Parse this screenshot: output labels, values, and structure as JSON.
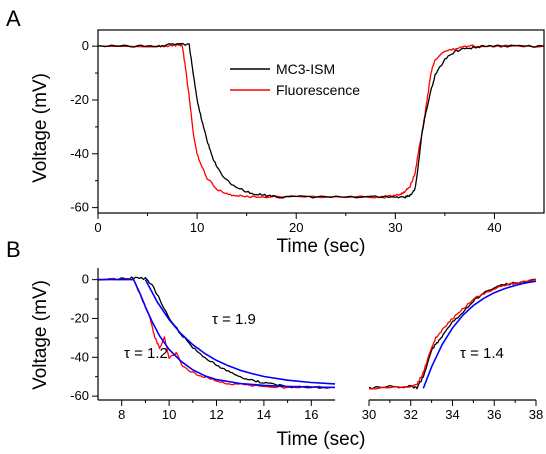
{
  "chart_data": [
    {
      "panel": "A",
      "type": "line",
      "xlabel": "Time (sec)",
      "ylabel": "Voltage (mV)",
      "xlim": [
        0,
        45
      ],
      "ylim": [
        -62,
        6
      ],
      "xticks": [
        0,
        10,
        20,
        30,
        40
      ],
      "yticks": [
        0,
        -20,
        -40,
        -60
      ],
      "legend": {
        "placement": "top-center",
        "entries": [
          "MC3-ISM",
          "Fluorescence"
        ]
      },
      "series": [
        {
          "name": "MC3-ISM",
          "color": "#000000",
          "x": [
            0,
            2,
            4,
            6,
            7,
            8,
            9.2,
            9.6,
            10,
            10.5,
            11,
            11.5,
            12,
            13,
            14,
            15,
            16,
            17,
            18,
            20,
            22,
            25,
            28,
            30,
            31,
            31.5,
            32,
            32.3,
            32.7,
            33,
            33.5,
            34,
            35,
            36,
            37,
            38,
            39,
            40,
            42,
            45
          ],
          "y": [
            0,
            0,
            0,
            0,
            0.5,
            1,
            0.5,
            -10,
            -20,
            -28,
            -35,
            -41,
            -45,
            -50,
            -52.5,
            -54,
            -55,
            -55.5,
            -56,
            -56,
            -56,
            -56,
            -56,
            -56,
            -56,
            -55.5,
            -53,
            -45,
            -32,
            -26,
            -18,
            -11,
            -5,
            -2,
            -1,
            -0.5,
            0,
            0,
            0,
            0
          ]
        },
        {
          "name": "Fluorescence",
          "color": "#ff0000",
          "x": [
            0,
            6,
            7,
            8,
            8.5,
            8.9,
            9.3,
            9.6,
            10,
            10.5,
            11,
            12,
            13,
            14,
            15,
            17,
            20,
            25,
            28,
            29,
            30,
            30.5,
            31,
            31.5,
            32,
            32.4,
            32.8,
            33.2,
            33.6,
            34,
            35,
            36,
            37,
            38,
            40,
            42,
            45
          ],
          "y": [
            0,
            0,
            0,
            0.5,
            0,
            -10,
            -22,
            -32,
            -40,
            -45,
            -49,
            -53,
            -55,
            -55.5,
            -56,
            -56,
            -56,
            -56,
            -56,
            -56,
            -55.5,
            -55,
            -54,
            -52,
            -47,
            -38,
            -30,
            -20,
            -10,
            -5,
            -2,
            -1,
            0,
            0,
            0,
            0,
            0
          ]
        }
      ]
    },
    {
      "panel": "B",
      "type": "line",
      "xlabel": "Time (sec)",
      "ylabel": "Voltage (mV)",
      "ylim": [
        -62,
        6
      ],
      "yticks": [
        0,
        -20,
        -40,
        -60
      ],
      "annotations": [
        "τ = 1.9",
        "τ = 1.2",
        "τ = 1.4"
      ],
      "subplots": [
        {
          "xlim": [
            7,
            17
          ],
          "xticks": [
            8,
            10,
            12,
            14,
            16
          ],
          "series": [
            {
              "name": "MC3-ISM",
              "color": "#000000",
              "x": [
                7,
                8,
                8.5,
                9,
                9.3,
                9.6,
                10,
                10.5,
                11,
                11.5,
                12,
                12.5,
                13,
                13.5,
                14,
                14.5,
                15,
                16,
                17
              ],
              "y": [
                0,
                0.5,
                1,
                0.5,
                -3,
                -10,
                -20,
                -28,
                -35,
                -40,
                -44,
                -47,
                -50,
                -52,
                -53,
                -54,
                -55,
                -55.5,
                -55.5
              ]
            },
            {
              "name": "",
              "color": "#ff0000",
              "x": [
                7,
                8,
                8.5,
                8.8,
                9,
                9.2,
                9.4,
                9.6,
                9.8,
                10,
                10.3,
                10.6,
                11,
                11.5,
                12,
                12.5,
                13,
                14,
                15,
                16,
                17
              ],
              "y": [
                0,
                0.5,
                0,
                -8,
                -14,
                -20,
                -30,
                -35,
                -30,
                -40,
                -38,
                -45,
                -48,
                -50,
                -52,
                -53.5,
                -54,
                -55,
                -55.5,
                -55.5,
                -55.5
              ]
            },
            {
              "name": "",
              "color": "#0000ff",
              "x": [
                7,
                8,
                8.5,
                8.8,
                9,
                9.3,
                9.6,
                10,
                10.5,
                11,
                11.5,
                12,
                13,
                14,
                15,
                16,
                17
              ],
              "y": [
                0,
                0,
                0,
                -8,
                -14,
                -22,
                -29,
                -36,
                -42,
                -46.5,
                -49.5,
                -51.5,
                -53.5,
                -54.5,
                -55,
                -55.3,
                -55.5
              ]
            },
            {
              "name": "",
              "color": "#0000ff",
              "x": [
                9,
                9.5,
                10,
                10.5,
                11,
                11.5,
                12,
                12.5,
                13,
                13.5,
                14,
                15,
                16,
                17
              ],
              "y": [
                0,
                -11.5,
                -20.6,
                -27.8,
                -33.5,
                -38,
                -41.6,
                -44.4,
                -46.7,
                -48.4,
                -49.9,
                -51.8,
                -53,
                -53.7
              ]
            }
          ]
        },
        {
          "xlim": [
            30,
            38
          ],
          "xticks": [
            30,
            32,
            34,
            36,
            38
          ],
          "series": [
            {
              "name": "MC3-ISM",
              "color": "#000000",
              "x": [
                30,
                31,
                31.5,
                32,
                32.3,
                32.6,
                33,
                33.3,
                33.6,
                34,
                34.5,
                35,
                35.5,
                36,
                36.5,
                37,
                37.5,
                38
              ],
              "y": [
                -56,
                -55,
                -56,
                -55,
                -56,
                -50,
                -36,
                -32,
                -28,
                -22,
                -17,
                -11,
                -7,
                -4,
                -2.5,
                -1.5,
                -1,
                0
              ]
            },
            {
              "name": "",
              "color": "#ff0000",
              "x": [
                30,
                31,
                32,
                32.3,
                32.6,
                32.9,
                33.2,
                33.5,
                33.8,
                34.2,
                34.6,
                35,
                35.5,
                36,
                36.5,
                37,
                37.5,
                38
              ],
              "y": [
                -56,
                -55.5,
                -55,
                -54,
                -48,
                -38,
                -30,
                -26,
                -22,
                -18,
                -14,
                -10,
                -7,
                -5,
                -3,
                -2,
                -1,
                0
              ]
            },
            {
              "name": "",
              "color": "#0000ff",
              "x": [
                32.6,
                33,
                33.5,
                34,
                34.5,
                35,
                35.5,
                36,
                36.5,
                37,
                37.5,
                38
              ],
              "y": [
                -56,
                -44.9,
                -33.5,
                -24.9,
                -18.3,
                -13.3,
                -9.6,
                -6.7,
                -4.6,
                -3,
                -1.7,
                -0.8
              ]
            }
          ]
        }
      ]
    }
  ]
}
